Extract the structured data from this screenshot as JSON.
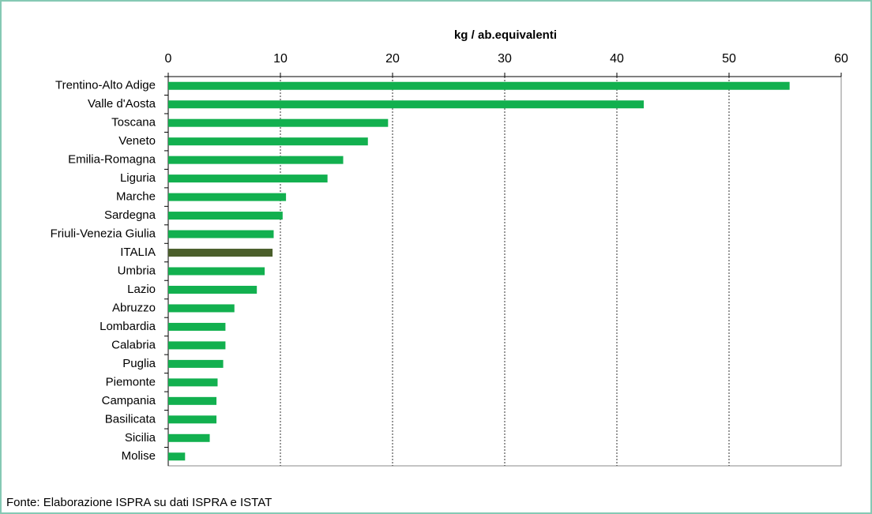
{
  "chart_data": {
    "type": "bar",
    "orientation": "horizontal",
    "title": "kg / ab.equivalenti",
    "categories": [
      "Trentino-Alto Adige",
      "Valle d'Aosta",
      "Toscana",
      "Veneto",
      "Emilia-Romagna",
      "Liguria",
      "Marche",
      "Sardegna",
      "Friuli-Venezia Giulia",
      "ITALIA",
      "Umbria",
      "Lazio",
      "Abruzzo",
      "Lombardia",
      "Calabria",
      "Puglia",
      "Piemonte",
      "Campania",
      "Basilicata",
      "Sicilia",
      "Molise"
    ],
    "values": [
      55.4,
      42.4,
      19.6,
      17.8,
      15.6,
      14.2,
      10.5,
      10.2,
      9.4,
      9.3,
      8.6,
      7.9,
      5.9,
      5.1,
      5.1,
      4.9,
      4.4,
      4.3,
      4.3,
      3.7,
      1.5
    ],
    "colors": [
      "#12b04f",
      "#12b04f",
      "#12b04f",
      "#12b04f",
      "#12b04f",
      "#12b04f",
      "#12b04f",
      "#12b04f",
      "#12b04f",
      "#4b5f2b",
      "#12b04f",
      "#12b04f",
      "#12b04f",
      "#12b04f",
      "#12b04f",
      "#12b04f",
      "#12b04f",
      "#12b04f",
      "#12b04f",
      "#12b04f",
      "#12b04f"
    ],
    "xlim": [
      0,
      60
    ],
    "xticks": [
      0,
      10,
      20,
      30,
      40,
      50,
      60
    ],
    "grid": true,
    "source": "Fonte:  Elaborazione ISPRA su dati ISPRA e ISTAT"
  }
}
